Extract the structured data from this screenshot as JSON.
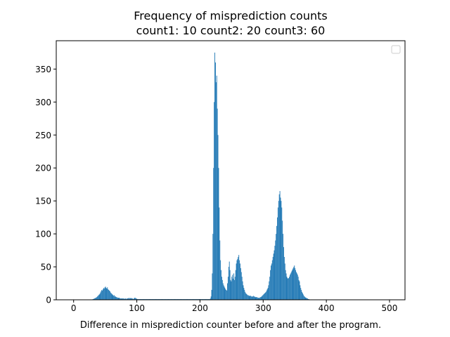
{
  "chart_data": {
    "type": "bar",
    "title_line1": "Frequency of misprediction counts",
    "title_line2": "count1: 10  count2: 20  count3: 60",
    "xlabel": "Difference in misprediction counter before and after the program.",
    "ylabel": "",
    "xlim": [
      -27.5,
      524.5
    ],
    "ylim": [
      0,
      393
    ],
    "xticks": [
      0,
      100,
      200,
      300,
      400,
      500
    ],
    "yticks": [
      0,
      50,
      100,
      150,
      200,
      250,
      300,
      350
    ],
    "bar_color": "#1f77b4",
    "legend": {
      "placement": "upper-right",
      "entries": []
    },
    "bins": {
      "start": 0,
      "width": 1,
      "counts": [
        0,
        0,
        0,
        0,
        0,
        0,
        0,
        0,
        0,
        0,
        0,
        0,
        0,
        0,
        0,
        0,
        0,
        0,
        0,
        0,
        0,
        0,
        0,
        0,
        0,
        0,
        0,
        0,
        0,
        0,
        1,
        1,
        2,
        2,
        3,
        3,
        4,
        5,
        6,
        7,
        8,
        9,
        11,
        13,
        15,
        14,
        16,
        18,
        17,
        19,
        20,
        18,
        17,
        19,
        16,
        15,
        14,
        13,
        11,
        10,
        9,
        8,
        7,
        6,
        7,
        5,
        5,
        4,
        4,
        3,
        3,
        3,
        3,
        2,
        2,
        2,
        2,
        2,
        2,
        2,
        1,
        2,
        2,
        1,
        2,
        2,
        2,
        3,
        2,
        2,
        3,
        2,
        2,
        2,
        1,
        2,
        3,
        3,
        2,
        2,
        1,
        1,
        1,
        1,
        1,
        1,
        1,
        1,
        1,
        1,
        1,
        1,
        1,
        1,
        1,
        1,
        1,
        1,
        1,
        1,
        1,
        1,
        1,
        1,
        1,
        1,
        1,
        1,
        1,
        1,
        1,
        1,
        1,
        1,
        1,
        1,
        1,
        1,
        1,
        1,
        1,
        1,
        1,
        1,
        1,
        1,
        1,
        1,
        1,
        1,
        1,
        1,
        1,
        1,
        1,
        1,
        1,
        1,
        1,
        1,
        1,
        1,
        1,
        1,
        1,
        1,
        1,
        1,
        1,
        1,
        1,
        1,
        1,
        1,
        1,
        1,
        1,
        1,
        1,
        1,
        1,
        1,
        1,
        1,
        1,
        1,
        1,
        1,
        1,
        1,
        1,
        1,
        1,
        1,
        1,
        1,
        1,
        1,
        1,
        1,
        1,
        1,
        1,
        1,
        1,
        1,
        1,
        1,
        1,
        1,
        1,
        1,
        1,
        1,
        1,
        1,
        2,
        5,
        15,
        40,
        100,
        200,
        300,
        375,
        360,
        330,
        340,
        290,
        250,
        200,
        140,
        90,
        60,
        45,
        35,
        30,
        25,
        22,
        20,
        18,
        16,
        15,
        14,
        25,
        35,
        50,
        58,
        45,
        30,
        28,
        35,
        38,
        32,
        40,
        30,
        35,
        45,
        55,
        60,
        62,
        65,
        68,
        60,
        55,
        48,
        42,
        35,
        28,
        22,
        18,
        15,
        12,
        10,
        9,
        8,
        7,
        7,
        6,
        6,
        6,
        6,
        5,
        5,
        5,
        6,
        5,
        5,
        4,
        4,
        4,
        4,
        3,
        3,
        3,
        3,
        4,
        4,
        5,
        6,
        7,
        8,
        9,
        10,
        11,
        12,
        14,
        16,
        18,
        22,
        28,
        35,
        45,
        52,
        55,
        60,
        65,
        70,
        75,
        82,
        90,
        100,
        112,
        125,
        140,
        150,
        160,
        165,
        155,
        150,
        140,
        120,
        100,
        80,
        65,
        55,
        45,
        40,
        35,
        33,
        32,
        33,
        35,
        38,
        40,
        42,
        44,
        46,
        48,
        50,
        52,
        48,
        45,
        42,
        40,
        38,
        35,
        30,
        28,
        22,
        18,
        15,
        12,
        10,
        8,
        6,
        5,
        4,
        3,
        3,
        2,
        2,
        1,
        1,
        0,
        0,
        0,
        0,
        0,
        0,
        0,
        0,
        0,
        0,
        0,
        0,
        0,
        0,
        0,
        0,
        0,
        0,
        0,
        0,
        0,
        0,
        0,
        0,
        0,
        0,
        0,
        0,
        0,
        0,
        0,
        0,
        0,
        0,
        0,
        0,
        0,
        0,
        0,
        0,
        0,
        0,
        0,
        0,
        0,
        0,
        0,
        0,
        0,
        0,
        0,
        0,
        0,
        0,
        0,
        0,
        0,
        0,
        0,
        0,
        0,
        0,
        0,
        0,
        0,
        0,
        0,
        0,
        0,
        0,
        0,
        0,
        0,
        0,
        0,
        0,
        0,
        0,
        0,
        0,
        0,
        0,
        0,
        0,
        0,
        0,
        0,
        0,
        0
      ]
    }
  }
}
